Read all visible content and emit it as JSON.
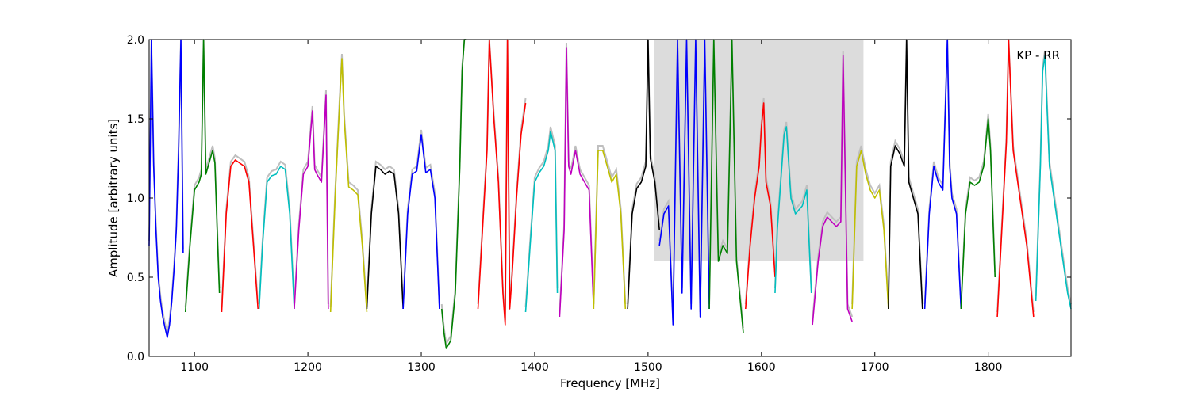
{
  "chart_data": {
    "type": "line",
    "title": "",
    "annotation": "KP - RR",
    "xlabel": "Frequency [MHz]",
    "ylabel": "Amplitude [arbitrary units]",
    "xlim": [
      1060,
      1873
    ],
    "ylim": [
      0.0,
      2.0
    ],
    "xticks": [
      1100,
      1200,
      1300,
      1400,
      1500,
      1600,
      1700,
      1800
    ],
    "yticks": [
      0.0,
      0.5,
      1.0,
      1.5,
      2.0
    ],
    "xtick_labels": [
      "1100",
      "1200",
      "1300",
      "1400",
      "1500",
      "1600",
      "1700",
      "1800"
    ],
    "ytick_labels": [
      "0.0",
      "0.5",
      "1.0",
      "1.5",
      "2.0"
    ],
    "grid": false,
    "background_series_color": "#bfbfbf",
    "series": [
      {
        "color": "#0000ff",
        "x": [
          1060,
          1062,
          1064,
          1066,
          1068,
          1070,
          1072,
          1074,
          1076,
          1078,
          1080,
          1082,
          1084,
          1086,
          1088,
          1090
        ],
        "y": [
          0.7,
          2.0,
          1.2,
          0.8,
          0.5,
          0.35,
          0.25,
          0.18,
          0.12,
          0.2,
          0.35,
          0.55,
          0.8,
          1.3,
          2.0,
          0.65
        ]
      },
      {
        "color": "#008000",
        "x": [
          1092,
          1096,
          1100,
          1104,
          1106,
          1108,
          1110,
          1112,
          1114,
          1116,
          1118,
          1120,
          1122
        ],
        "y": [
          0.28,
          0.7,
          1.05,
          1.1,
          1.15,
          2.0,
          1.15,
          1.2,
          1.25,
          1.3,
          1.22,
          0.8,
          0.4
        ]
      },
      {
        "color": "#ff0000",
        "x": [
          1124,
          1128,
          1132,
          1136,
          1140,
          1144,
          1148,
          1152,
          1156
        ],
        "y": [
          0.28,
          0.9,
          1.2,
          1.24,
          1.22,
          1.2,
          1.1,
          0.7,
          0.3
        ]
      },
      {
        "color": "#00bfbf",
        "x": [
          1157,
          1160,
          1164,
          1168,
          1172,
          1176,
          1180,
          1184,
          1188
        ],
        "y": [
          0.3,
          0.7,
          1.1,
          1.14,
          1.15,
          1.2,
          1.18,
          0.9,
          0.3
        ]
      },
      {
        "color": "#bf00bf",
        "x": [
          1188,
          1192,
          1196,
          1200,
          1204,
          1206,
          1208,
          1212,
          1216,
          1218
        ],
        "y": [
          0.3,
          0.8,
          1.15,
          1.2,
          1.55,
          1.18,
          1.15,
          1.1,
          1.65,
          0.3
        ]
      },
      {
        "color": "#bfbf00",
        "x": [
          1220,
          1224,
          1228,
          1230,
          1232,
          1236,
          1240,
          1244,
          1248,
          1252
        ],
        "y": [
          0.28,
          1.0,
          1.6,
          1.88,
          1.5,
          1.07,
          1.05,
          1.02,
          0.7,
          0.28
        ]
      },
      {
        "color": "#000000",
        "x": [
          1252,
          1256,
          1260,
          1264,
          1268,
          1272,
          1276,
          1280,
          1284
        ],
        "y": [
          0.3,
          0.9,
          1.2,
          1.18,
          1.15,
          1.17,
          1.15,
          0.9,
          0.3
        ]
      },
      {
        "color": "#0000ff",
        "x": [
          1284,
          1288,
          1292,
          1296,
          1300,
          1304,
          1308,
          1312,
          1316
        ],
        "y": [
          0.3,
          0.9,
          1.15,
          1.17,
          1.4,
          1.16,
          1.18,
          1.0,
          0.3
        ]
      },
      {
        "color": "#008000",
        "x": [
          1318,
          1320,
          1322,
          1326,
          1330,
          1334,
          1336,
          1338,
          1340
        ],
        "y": [
          0.3,
          0.15,
          0.05,
          0.1,
          0.4,
          1.2,
          1.8,
          2.0,
          2.0
        ]
      },
      {
        "color": "#ff0000",
        "x": [
          1350,
          1354,
          1358,
          1360,
          1364,
          1368,
          1372,
          1374,
          1376,
          1378,
          1380,
          1384,
          1388,
          1392
        ],
        "y": [
          0.3,
          0.8,
          1.3,
          2.0,
          1.5,
          1.1,
          0.4,
          0.2,
          2.0,
          0.3,
          0.5,
          1.0,
          1.4,
          1.6
        ]
      },
      {
        "color": "#00bfbf",
        "x": [
          1392,
          1396,
          1400,
          1404,
          1408,
          1412,
          1414,
          1418,
          1420
        ],
        "y": [
          0.28,
          0.7,
          1.1,
          1.16,
          1.2,
          1.3,
          1.42,
          1.3,
          0.4
        ]
      },
      {
        "color": "#bf00bf",
        "x": [
          1422,
          1426,
          1428,
          1430,
          1432,
          1436,
          1440,
          1444,
          1448,
          1452
        ],
        "y": [
          0.25,
          0.8,
          1.95,
          1.2,
          1.15,
          1.3,
          1.15,
          1.1,
          1.05,
          0.3
        ]
      },
      {
        "color": "#bfbf00",
        "x": [
          1452,
          1456,
          1460,
          1464,
          1468,
          1472,
          1476,
          1480
        ],
        "y": [
          0.3,
          1.3,
          1.3,
          1.2,
          1.1,
          1.15,
          0.9,
          0.3
        ]
      },
      {
        "color": "#000000",
        "x": [
          1482,
          1486,
          1490,
          1494,
          1498,
          1500,
          1502,
          1506,
          1510
        ],
        "y": [
          0.3,
          0.9,
          1.06,
          1.1,
          1.2,
          2.0,
          1.25,
          1.1,
          0.8
        ]
      },
      {
        "color": "#0000ff",
        "x": [
          1510,
          1514,
          1518,
          1522,
          1526,
          1530,
          1534,
          1538,
          1542,
          1546,
          1550,
          1554
        ],
        "y": [
          0.7,
          0.9,
          0.95,
          0.2,
          2.0,
          0.4,
          2.0,
          0.3,
          2.0,
          0.25,
          2.0,
          0.3
        ]
      },
      {
        "color": "#008000",
        "x": [
          1554,
          1558,
          1562,
          1566,
          1570,
          1574,
          1578,
          1582,
          1584
        ],
        "y": [
          0.3,
          2.0,
          0.6,
          0.7,
          0.65,
          2.0,
          0.6,
          0.3,
          0.15
        ]
      },
      {
        "color": "#ff0000",
        "x": [
          1586,
          1590,
          1594,
          1598,
          1600,
          1602,
          1604,
          1608,
          1612
        ],
        "y": [
          0.3,
          0.7,
          1.0,
          1.2,
          1.45,
          1.6,
          1.1,
          0.95,
          0.5
        ]
      },
      {
        "color": "#00bfbf",
        "x": [
          1612,
          1614,
          1618,
          1620,
          1622,
          1626,
          1630,
          1636,
          1640,
          1644
        ],
        "y": [
          0.4,
          0.8,
          1.2,
          1.4,
          1.45,
          1.0,
          0.9,
          0.95,
          1.05,
          0.4
        ]
      },
      {
        "color": "#bf00bf",
        "x": [
          1645,
          1650,
          1654,
          1658,
          1662,
          1666,
          1670,
          1672,
          1676,
          1680
        ],
        "y": [
          0.2,
          0.6,
          0.82,
          0.88,
          0.85,
          0.82,
          0.85,
          1.9,
          0.3,
          0.22
        ]
      },
      {
        "color": "#bfbf00",
        "x": [
          1680,
          1684,
          1688,
          1692,
          1696,
          1700,
          1704,
          1708,
          1712
        ],
        "y": [
          0.3,
          1.2,
          1.3,
          1.15,
          1.05,
          1.0,
          1.05,
          0.8,
          0.3
        ]
      },
      {
        "color": "#000000",
        "x": [
          1712,
          1714,
          1718,
          1722,
          1726,
          1728,
          1730,
          1734,
          1738,
          1742
        ],
        "y": [
          0.3,
          1.2,
          1.33,
          1.28,
          1.2,
          2.0,
          1.1,
          1.0,
          0.9,
          0.3
        ]
      },
      {
        "color": "#0000ff",
        "x": [
          1744,
          1748,
          1752,
          1756,
          1760,
          1764,
          1766,
          1768,
          1772,
          1776
        ],
        "y": [
          0.3,
          0.9,
          1.2,
          1.1,
          1.05,
          2.0,
          1.2,
          1.0,
          0.9,
          0.3
        ]
      },
      {
        "color": "#008000",
        "x": [
          1776,
          1780,
          1784,
          1788,
          1792,
          1796,
          1800,
          1802,
          1806
        ],
        "y": [
          0.3,
          0.9,
          1.1,
          1.08,
          1.1,
          1.2,
          1.5,
          1.3,
          0.5
        ]
      },
      {
        "color": "#ff0000",
        "x": [
          1808,
          1812,
          1816,
          1818,
          1822,
          1826,
          1830,
          1834,
          1838,
          1840
        ],
        "y": [
          0.25,
          0.8,
          1.35,
          2.0,
          1.3,
          1.1,
          0.9,
          0.7,
          0.4,
          0.25
        ]
      },
      {
        "color": "#00bfbf",
        "x": [
          1842,
          1846,
          1848,
          1850,
          1854,
          1858,
          1862,
          1866,
          1870,
          1873
        ],
        "y": [
          0.35,
          1.2,
          1.8,
          1.9,
          1.2,
          1.0,
          0.8,
          0.6,
          0.4,
          0.3
        ]
      }
    ],
    "background_spans": [
      {
        "x": [
          1590,
          1690
        ],
        "y": [
          0.6,
          2.0
        ]
      },
      {
        "x": [
          1505,
          1590
        ],
        "y": [
          0.6,
          2.0
        ]
      }
    ]
  }
}
